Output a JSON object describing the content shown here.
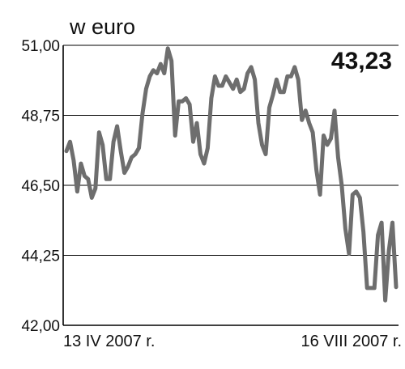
{
  "chart_data": {
    "type": "line",
    "title": "",
    "unit_label": "w euro",
    "current_value_label": "43,23",
    "xlabel": "",
    "ylabel": "",
    "x_start_label": "13 IV 2007 r.",
    "x_end_label": "16 VIII 2007 r.",
    "ylim": [
      42.0,
      51.0
    ],
    "y_ticks": [
      {
        "value": 42.0,
        "label": "42,00"
      },
      {
        "value": 44.25,
        "label": "44,25"
      },
      {
        "value": 46.5,
        "label": "46,50"
      },
      {
        "value": 48.75,
        "label": "48,75"
      },
      {
        "value": 51.0,
        "label": "51,00"
      }
    ],
    "grid": true,
    "series": [
      {
        "color": "#6e6e6e",
        "values": [
          47.6,
          47.9,
          47.3,
          46.3,
          47.2,
          46.8,
          46.7,
          46.1,
          46.4,
          48.2,
          47.8,
          46.7,
          46.7,
          47.9,
          48.4,
          47.6,
          46.9,
          47.1,
          47.4,
          47.5,
          47.7,
          48.8,
          49.6,
          50.0,
          50.2,
          50.1,
          50.4,
          50.1,
          50.9,
          50.5,
          48.1,
          49.2,
          49.2,
          49.3,
          49.1,
          47.9,
          48.5,
          47.5,
          47.2,
          47.7,
          49.3,
          50.0,
          49.7,
          49.7,
          50.0,
          49.8,
          49.6,
          49.9,
          49.5,
          49.6,
          50.1,
          50.3,
          49.9,
          48.5,
          47.8,
          47.5,
          49.0,
          49.4,
          49.9,
          49.5,
          49.5,
          50.0,
          50.0,
          50.3,
          49.9,
          48.6,
          48.9,
          48.5,
          48.2,
          47.0,
          46.2,
          48.1,
          47.8,
          48.0,
          48.9,
          47.4,
          46.5,
          45.1,
          44.3,
          46.2,
          46.3,
          46.1,
          45.0,
          43.2,
          43.2,
          43.2,
          44.9,
          45.3,
          42.8,
          44.4,
          45.3,
          43.23
        ]
      }
    ]
  }
}
